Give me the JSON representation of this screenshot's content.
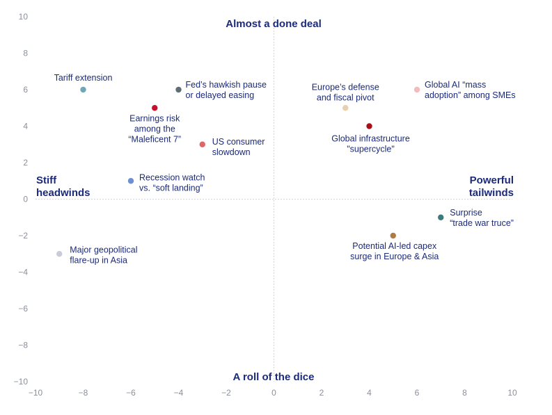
{
  "chart_data": {
    "type": "scatter",
    "xlim": [
      -10,
      10
    ],
    "ylim": [
      -10,
      10
    ],
    "x_ticks": [
      -10,
      -8,
      -6,
      -4,
      -2,
      0,
      2,
      4,
      6,
      8,
      10
    ],
    "y_ticks": [
      10,
      8,
      6,
      4,
      2,
      0,
      -2,
      -4,
      -6,
      -8,
      -10
    ],
    "grid": false,
    "quadrant_labels": {
      "top": "Almost a done deal",
      "bottom": "A roll of the dice",
      "left": [
        "Stiff",
        "headwinds"
      ],
      "right": [
        "Powerful",
        "tailwinds"
      ]
    },
    "points": [
      {
        "label": [
          "Tariff extension"
        ],
        "x": -8,
        "y": 6,
        "color": "#6fa8b4"
      },
      {
        "label": [
          "Fed’s hawkish pause",
          "or delayed easing"
        ],
        "x": -4,
        "y": 6,
        "color": "#5e6e74"
      },
      {
        "label": [
          "Earnings risk",
          "among the",
          "“Maleficent 7”"
        ],
        "x": -5,
        "y": 5,
        "color": "#c8102e"
      },
      {
        "label": [
          "US consumer",
          "slowdown"
        ],
        "x": -3,
        "y": 3,
        "color": "#e06666"
      },
      {
        "label": [
          "Recession watch",
          "vs. “soft landing”"
        ],
        "x": -6,
        "y": 1,
        "color": "#6d8fd6"
      },
      {
        "label": [
          "Major geopolitical",
          "flare-up in Asia"
        ],
        "x": -9,
        "y": -3,
        "color": "#c9ccd6"
      },
      {
        "label": [
          "Europe’s defense",
          "and fiscal pivot"
        ],
        "x": 3,
        "y": 5,
        "color": "#e8cfae"
      },
      {
        "label": [
          "Global AI “mass",
          "adoption” among SMEs"
        ],
        "x": 6,
        "y": 6,
        "color": "#f2bcbc"
      },
      {
        "label": [
          "Global infrastructure",
          "\"supercycle\""
        ],
        "x": 4,
        "y": 4,
        "color": "#a50f15"
      },
      {
        "label": [
          "Surprise",
          "“trade war truce”"
        ],
        "x": 7,
        "y": -1,
        "color": "#3f7a7a"
      },
      {
        "label": [
          "Potential AI-led capex",
          "surge in Europe & Asia"
        ],
        "x": 5,
        "y": -2,
        "color": "#b07a45"
      }
    ]
  }
}
